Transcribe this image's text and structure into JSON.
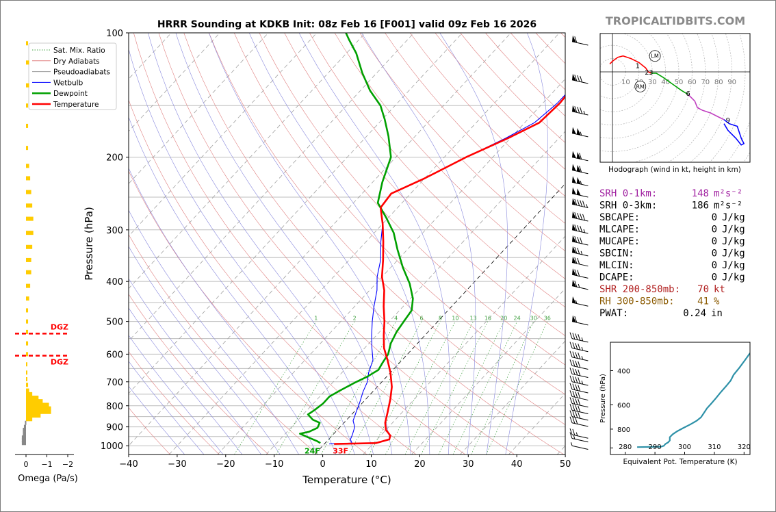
{
  "page": {
    "title": "HRRR Sounding at KDKB Init: 08z Feb 16 [F001] valid 09z Feb 16 2026",
    "watermark": "TROPICALTIDBITS.COM"
  },
  "colors": {
    "temperature": "#ff0000",
    "dewpoint": "#00a000",
    "wetbulb": "#0000ff",
    "dry_adiabat": "#e08080",
    "moist_adiabat": "#8888dd",
    "mixing_ratio": "#40a040",
    "theta_e": "#2e91a8",
    "omega": "#ffcc00",
    "dgz": "#ff0000"
  },
  "chart_data": [
    {
      "type": "line",
      "name": "skew-t",
      "xlabel": "Temperature (°C)",
      "ylabel": "Pressure (hPa)",
      "xlim": [
        -40,
        50
      ],
      "ylim": [
        1050,
        100
      ],
      "y_scale": "log",
      "x_ticks": [
        "−40",
        "−30",
        "−20",
        "−10",
        "0",
        "10",
        "20",
        "30",
        "40",
        "50"
      ],
      "y_ticks": [
        "100",
        "200",
        "300",
        "400",
        "500",
        "600",
        "700",
        "800",
        "900",
        "1000"
      ],
      "grid": true,
      "legend": {
        "position": "top-left",
        "items": [
          "Sat. Mix. Ratio",
          "Dry Adiabats",
          "Pseudoadiabats",
          "Wetbulb",
          "Dewpoint",
          "Temperature"
        ]
      },
      "mixing_ratio_labels": [
        "1",
        "2",
        "4",
        "6",
        "8",
        "10",
        "13",
        "16",
        "20",
        "24",
        "30",
        "36"
      ],
      "series": [
        {
          "name": "Temperature",
          "points": [
            [
              2.0,
              990
            ],
            [
              10.5,
              985
            ],
            [
              12.5,
              965
            ],
            [
              12.0,
              945
            ],
            [
              10.0,
              915
            ],
            [
              8.5,
              880
            ],
            [
              7.0,
              830
            ],
            [
              5.0,
              770
            ],
            [
              3.0,
              720
            ],
            [
              0.0,
              665
            ],
            [
              -3.0,
              620
            ],
            [
              -6.0,
              580
            ],
            [
              -8.5,
              540
            ],
            [
              -11.0,
              500
            ],
            [
              -14.0,
              460
            ],
            [
              -17.0,
              420
            ],
            [
              -20.0,
              390
            ],
            [
              -23.0,
              355
            ],
            [
              -26.5,
              320
            ],
            [
              -30.0,
              290
            ],
            [
              -33.5,
              265
            ],
            [
              -34.0,
              245
            ],
            [
              -30.0,
              225
            ],
            [
              -25.5,
              200
            ],
            [
              -20.5,
              180
            ],
            [
              -17.0,
              165
            ],
            [
              -16.5,
              148
            ],
            [
              -17.0,
              130
            ],
            [
              -17.0,
              118
            ],
            [
              -16.0,
              112
            ],
            [
              -14.0,
              105
            ],
            [
              -12.5,
              100
            ]
          ]
        },
        {
          "name": "Dewpoint",
          "points": [
            [
              -1.0,
              985
            ],
            [
              -2.0,
              975
            ],
            [
              -4.5,
              955
            ],
            [
              -7.0,
              935
            ],
            [
              -5.5,
              925
            ],
            [
              -4.5,
              905
            ],
            [
              -5.0,
              880
            ],
            [
              -7.0,
              865
            ],
            [
              -9.0,
              840
            ],
            [
              -8.5,
              820
            ],
            [
              -8.0,
              790
            ],
            [
              -8.0,
              760
            ],
            [
              -7.0,
              735
            ],
            [
              -5.5,
              705
            ],
            [
              -4.0,
              680
            ],
            [
              -3.0,
              655
            ],
            [
              -3.5,
              630
            ],
            [
              -4.0,
              600
            ],
            [
              -5.5,
              565
            ],
            [
              -6.5,
              530
            ],
            [
              -7.0,
              500
            ],
            [
              -7.5,
              470
            ],
            [
              -9.5,
              440
            ],
            [
              -13.0,
              405
            ],
            [
              -17.5,
              370
            ],
            [
              -22.0,
              335
            ],
            [
              -26.0,
              305
            ],
            [
              -30.5,
              280
            ],
            [
              -35.0,
              258
            ],
            [
              -38.0,
              230
            ],
            [
              -41.0,
              200
            ],
            [
              -45.5,
              178
            ],
            [
              -49.5,
              162
            ],
            [
              -53.0,
              150
            ],
            [
              -58.0,
              138
            ],
            [
              -63.0,
              125
            ],
            [
              -68.0,
              112
            ],
            [
              -72.0,
              104
            ],
            [
              -74.0,
              100
            ]
          ]
        },
        {
          "name": "Wetbulb",
          "points": [
            [
              1.0,
              990
            ],
            [
              5.5,
              985
            ],
            [
              4.5,
              965
            ],
            [
              4.0,
              940
            ],
            [
              3.0,
              900
            ],
            [
              1.5,
              870
            ],
            [
              0.5,
              830
            ],
            [
              -0.5,
              790
            ],
            [
              -2.0,
              740
            ],
            [
              -3.0,
              700
            ],
            [
              -4.5,
              665
            ],
            [
              -6.0,
              620
            ],
            [
              -8.5,
              580
            ],
            [
              -11.0,
              540
            ],
            [
              -13.5,
              500
            ],
            [
              -16.0,
              460
            ],
            [
              -18.5,
              420
            ],
            [
              -21.0,
              390
            ],
            [
              -23.5,
              355
            ],
            [
              -27.0,
              320
            ],
            [
              -30.0,
              290
            ],
            [
              -33.5,
              265
            ],
            [
              -34.0,
              245
            ],
            [
              -30.0,
              225
            ],
            [
              -25.5,
              200
            ],
            [
              -21.0,
              180
            ],
            [
              -18.0,
              165
            ],
            [
              -17.0,
              148
            ],
            [
              -17.0,
              130
            ],
            [
              -17.0,
              118
            ],
            [
              -16.0,
              112
            ],
            [
              -14.0,
              105
            ],
            [
              -12.5,
              100
            ]
          ]
        }
      ],
      "annotations": [
        {
          "text": "24F",
          "color": "#00a000"
        },
        {
          "text": "33F",
          "color": "#ff0000"
        }
      ],
      "wind_barbs_knots": [
        {
          "p": 1000,
          "kt": 5
        },
        {
          "p": 960,
          "kt": 15
        },
        {
          "p": 940,
          "kt": 25
        },
        {
          "p": 880,
          "kt": 30
        },
        {
          "p": 850,
          "kt": 40
        },
        {
          "p": 820,
          "kt": 40
        },
        {
          "p": 790,
          "kt": 40
        },
        {
          "p": 760,
          "kt": 40
        },
        {
          "p": 730,
          "kt": 40
        },
        {
          "p": 700,
          "kt": 45
        },
        {
          "p": 670,
          "kt": 40
        },
        {
          "p": 640,
          "kt": 40
        },
        {
          "p": 610,
          "kt": 45
        },
        {
          "p": 580,
          "kt": 45
        },
        {
          "p": 550,
          "kt": 45
        },
        {
          "p": 500,
          "kt": 60
        },
        {
          "p": 450,
          "kt": 55
        },
        {
          "p": 410,
          "kt": 65
        },
        {
          "p": 385,
          "kt": 70
        },
        {
          "p": 360,
          "kt": 70
        },
        {
          "p": 340,
          "kt": 75
        },
        {
          "p": 320,
          "kt": 80
        },
        {
          "p": 300,
          "kt": 85
        },
        {
          "p": 280,
          "kt": 90
        },
        {
          "p": 260,
          "kt": 95
        },
        {
          "p": 245,
          "kt": 100
        },
        {
          "p": 230,
          "kt": 105
        },
        {
          "p": 215,
          "kt": 110
        },
        {
          "p": 200,
          "kt": 110
        },
        {
          "p": 175,
          "kt": 105
        },
        {
          "p": 155,
          "kt": 85
        },
        {
          "p": 130,
          "kt": 80
        },
        {
          "p": 105,
          "kt": 60
        }
      ]
    },
    {
      "type": "bar",
      "name": "omega",
      "xlabel": "Omega (Pa/s)",
      "x_ticks": [
        "0",
        "−1",
        "−2"
      ],
      "xlim": [
        0.2,
        -2.2
      ],
      "dgz_label": "DGZ",
      "dgz_bounds_hPa": [
        535,
        605
      ],
      "bars": [
        {
          "p": 985,
          "v": 0.2
        },
        {
          "p": 970,
          "v": 0.2
        },
        {
          "p": 955,
          "v": 0.2
        },
        {
          "p": 935,
          "v": 0.15
        },
        {
          "p": 915,
          "v": 0.15
        },
        {
          "p": 900,
          "v": 0.1
        },
        {
          "p": 880,
          "v": 0.05
        },
        {
          "p": 862,
          "v": -0.3
        },
        {
          "p": 845,
          "v": -0.7
        },
        {
          "p": 828,
          "v": -1.2
        },
        {
          "p": 812,
          "v": -1.2
        },
        {
          "p": 796,
          "v": -1.1
        },
        {
          "p": 780,
          "v": -0.8
        },
        {
          "p": 765,
          "v": -0.6
        },
        {
          "p": 750,
          "v": -0.3
        },
        {
          "p": 735,
          "v": -0.15
        },
        {
          "p": 712,
          "v": -0.1
        },
        {
          "p": 690,
          "v": -0.05
        },
        {
          "p": 665,
          "v": -0.05
        },
        {
          "p": 635,
          "v": -0.05
        },
        {
          "p": 600,
          "v": -0.1
        },
        {
          "p": 565,
          "v": -0.1
        },
        {
          "p": 530,
          "v": -0.1
        },
        {
          "p": 500,
          "v": -0.1
        },
        {
          "p": 470,
          "v": -0.1
        },
        {
          "p": 440,
          "v": -0.15
        },
        {
          "p": 410,
          "v": -0.2
        },
        {
          "p": 380,
          "v": -0.25
        },
        {
          "p": 355,
          "v": -0.25
        },
        {
          "p": 330,
          "v": -0.3
        },
        {
          "p": 305,
          "v": -0.35
        },
        {
          "p": 282,
          "v": -0.35
        },
        {
          "p": 262,
          "v": -0.3
        },
        {
          "p": 243,
          "v": -0.25
        },
        {
          "p": 225,
          "v": -0.2
        },
        {
          "p": 210,
          "v": -0.15
        },
        {
          "p": 190,
          "v": -0.1
        },
        {
          "p": 168,
          "v": -0.1
        },
        {
          "p": 150,
          "v": -0.1
        },
        {
          "p": 134,
          "v": -0.15
        },
        {
          "p": 118,
          "v": -0.15
        },
        {
          "p": 106,
          "v": -0.1
        }
      ]
    },
    {
      "type": "line",
      "name": "hodograph",
      "xlabel": "Hodograph (wind in kt, height in km)",
      "ring_labels": [
        "10",
        "20",
        "30",
        "40",
        "50",
        "60",
        "70",
        "80",
        "90"
      ],
      "height_labels": [
        "1",
        "2",
        "3",
        "6",
        "9"
      ],
      "markers": [
        "LM",
        "RM"
      ],
      "segments": [
        {
          "color": "#ff0000",
          "points": [
            [
              -2,
              6
            ],
            [
              0,
              8
            ],
            [
              4,
              11
            ],
            [
              8,
              12
            ],
            [
              14,
              10
            ],
            [
              20,
              7
            ],
            [
              25,
              3
            ],
            [
              27,
              0
            ],
            [
              29,
              -1
            ]
          ]
        },
        {
          "color": "#00a000",
          "points": [
            [
              29,
              -1
            ],
            [
              33,
              -1
            ],
            [
              38,
              -4
            ],
            [
              45,
              -9
            ],
            [
              52,
              -14
            ],
            [
              57,
              -17
            ]
          ]
        },
        {
          "color": "#c040c0",
          "points": [
            [
              57,
              -17
            ],
            [
              62,
              -22
            ],
            [
              64,
              -27
            ],
            [
              68,
              -29
            ],
            [
              74,
              -31
            ],
            [
              80,
              -34
            ],
            [
              84,
              -36
            ]
          ]
        },
        {
          "color": "#0000ff",
          "points": [
            [
              84,
              -36
            ],
            [
              88,
              -39
            ],
            [
              94,
              -41
            ],
            [
              97,
              -50
            ],
            [
              99,
              -54
            ],
            [
              97,
              -55
            ],
            [
              93,
              -50
            ],
            [
              87,
              -44
            ],
            [
              84,
              -39
            ]
          ]
        }
      ],
      "storm_motion": {
        "LM": [
          32,
          12
        ],
        "RM": [
          21,
          -11
        ]
      }
    },
    {
      "type": "line",
      "name": "theta-e",
      "xlabel": "Equivalent Pot. Temperature (K)",
      "ylabel": "Pressure (hPa)",
      "xlim": [
        275,
        322
      ],
      "ylim": [
        1000,
        300
      ],
      "x_ticks": [
        "280",
        "290",
        "300",
        "310",
        "320"
      ],
      "y_ticks": [
        "400",
        "600",
        "800"
      ],
      "points": [
        [
          284,
          990
        ],
        [
          289,
          988
        ],
        [
          292,
          985
        ],
        [
          293,
          975
        ],
        [
          293.5,
          955
        ],
        [
          294.5,
          935
        ],
        [
          295,
          915
        ],
        [
          295,
          880
        ],
        [
          296,
          850
        ],
        [
          297.5,
          820
        ],
        [
          299.5,
          790
        ],
        [
          302,
          755
        ],
        [
          304,
          725
        ],
        [
          305.5,
          695
        ],
        [
          306.5,
          660
        ],
        [
          307.5,
          625
        ],
        [
          309,
          590
        ],
        [
          310.5,
          555
        ],
        [
          312,
          520
        ],
        [
          314,
          480
        ],
        [
          315.5,
          450
        ],
        [
          316.5,
          420
        ],
        [
          318.5,
          385
        ],
        [
          320.5,
          350
        ],
        [
          322,
          325
        ]
      ]
    }
  ],
  "indices": [
    {
      "label": "SRH 0-1km:",
      "value": "148",
      "unit": "m²s⁻²",
      "color": "#a020a0"
    },
    {
      "label": "SRH 0-3km:",
      "value": "186",
      "unit": "m²s⁻²",
      "color": "#000000"
    },
    {
      "label": "SBCAPE:",
      "value": "0",
      "unit": "J/kg",
      "color": "#000000"
    },
    {
      "label": "MLCAPE:",
      "value": "0",
      "unit": "J/kg",
      "color": "#000000"
    },
    {
      "label": "MUCAPE:",
      "value": "0",
      "unit": "J/kg",
      "color": "#000000"
    },
    {
      "label": "SBCIN:",
      "value": "0",
      "unit": "J/kg",
      "color": "#000000"
    },
    {
      "label": "MLCIN:",
      "value": "0",
      "unit": "J/kg",
      "color": "#000000"
    },
    {
      "label": "DCAPE:",
      "value": "0",
      "unit": "J/kg",
      "color": "#000000"
    },
    {
      "label": "SHR 200-850mb:",
      "value": "70",
      "unit": "kt",
      "color": "#b22222"
    },
    {
      "label": "RH 300-850mb:",
      "value": "41",
      "unit": "%",
      "color": "#8b5a00"
    },
    {
      "label": "PWAT:",
      "value": "0.24",
      "unit": "in",
      "color": "#000000"
    }
  ]
}
